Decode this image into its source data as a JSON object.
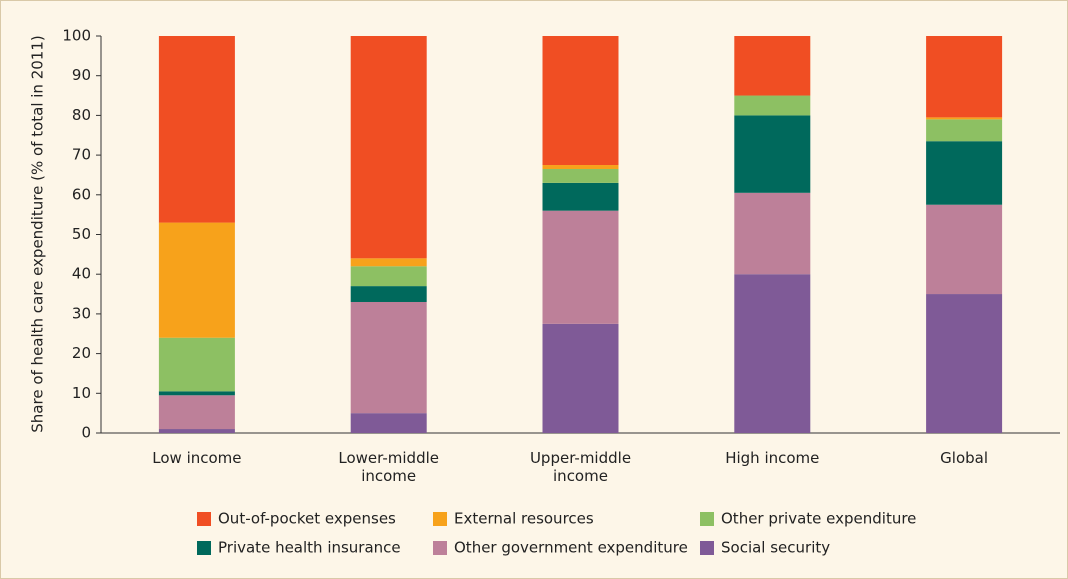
{
  "chart_data": {
    "type": "stacked_bar",
    "y_label": "Share of health care expenditure (% of total in 2011)",
    "categories": [
      "Low income",
      "Lower-middle income",
      "Upper-middle income",
      "High income",
      "Global"
    ],
    "series": [
      {
        "name": "Out-of-pocket expenses",
        "color": "#f04e23",
        "values": [
          47,
          56,
          32.5,
          15,
          20.5
        ]
      },
      {
        "name": "External resources",
        "color": "#f7a21b",
        "values": [
          29,
          2,
          1,
          0,
          0.5
        ]
      },
      {
        "name": "Other private expenditure",
        "color": "#8dc063",
        "values": [
          13.5,
          5,
          3.5,
          5,
          5.5
        ]
      },
      {
        "name": "Private health insurance",
        "color": "#00695c",
        "values": [
          1,
          4,
          7,
          19.5,
          16
        ]
      },
      {
        "name": "Other government expenditure",
        "color": "#bd8099",
        "values": [
          8.5,
          28,
          28.5,
          20.5,
          22.5
        ]
      },
      {
        "name": "Social security",
        "color": "#7f5a97",
        "values": [
          1,
          5,
          27.5,
          40,
          35
        ]
      }
    ],
    "ylim": [
      0,
      100
    ],
    "yticks": [
      0,
      10,
      20,
      30,
      40,
      50,
      60,
      70,
      80,
      90,
      100
    ]
  }
}
